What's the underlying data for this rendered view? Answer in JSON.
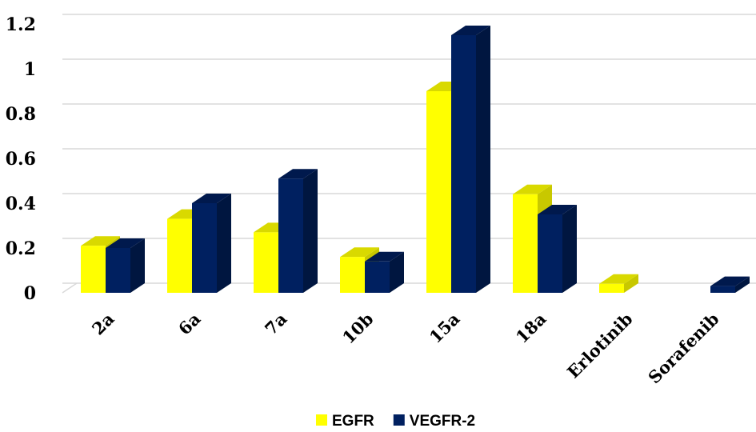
{
  "chart_data": {
    "type": "bar",
    "categories": [
      "2a",
      "6a",
      "7a",
      "10b",
      "15a",
      "18a",
      "Erlotinib",
      "Sorafenib"
    ],
    "series": [
      {
        "name": "EGFR",
        "values": [
          0.21,
          0.33,
          0.27,
          0.16,
          0.9,
          0.44,
          0.04,
          0.0
        ],
        "color": "#ffff00",
        "side_color": "#c8c800",
        "top_color": "#d9d900"
      },
      {
        "name": "VEGFR-2",
        "values": [
          0.2,
          0.4,
          0.51,
          0.14,
          1.15,
          0.35,
          0.0,
          0.03
        ],
        "color": "#002060",
        "side_color": "#001640",
        "top_color": "#00194d"
      }
    ],
    "y_ticks": [
      "0",
      "0.2",
      "0.4",
      "0.6",
      "0.8",
      "1",
      "1.2"
    ],
    "ylim": [
      0,
      1.2
    ],
    "grid": true,
    "legend_position": "bottom",
    "three_d": true
  }
}
